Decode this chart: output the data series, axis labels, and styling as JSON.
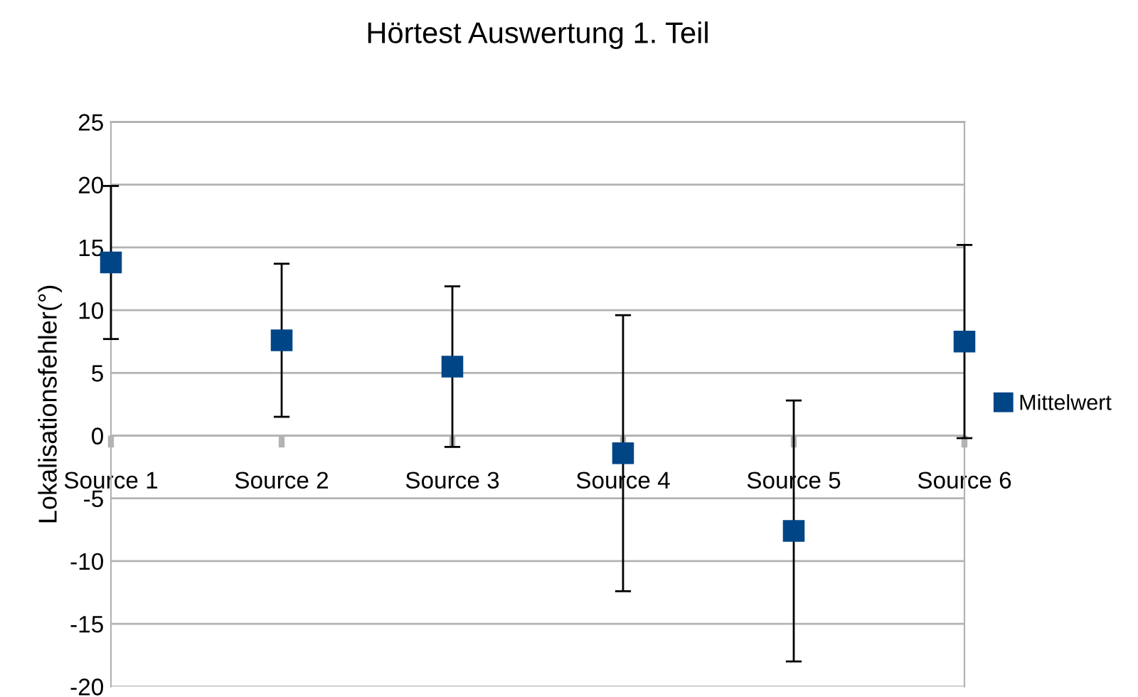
{
  "chart_data": {
    "type": "scatter",
    "title": "Hörtest Auswertung 1. Teil",
    "ylabel": "Lokalisationsfehler(°)",
    "categories": [
      "Source 1",
      "Source 2",
      "Source 3",
      "Source 4",
      "Source 5",
      "Source 6"
    ],
    "series": [
      {
        "name": "Mittelwert",
        "color": "#004586",
        "values": [
          13.8,
          7.6,
          5.5,
          -1.4,
          -7.6,
          7.5
        ],
        "errors": [
          6.1,
          6.1,
          6.4,
          11,
          10.4,
          7.7
        ]
      }
    ],
    "ylim": [
      -20,
      25
    ],
    "yticks": [
      -20,
      -15,
      -10,
      -5,
      0,
      5,
      10,
      15,
      20,
      25
    ],
    "grid": "y",
    "legend": "right",
    "marker": "square"
  }
}
